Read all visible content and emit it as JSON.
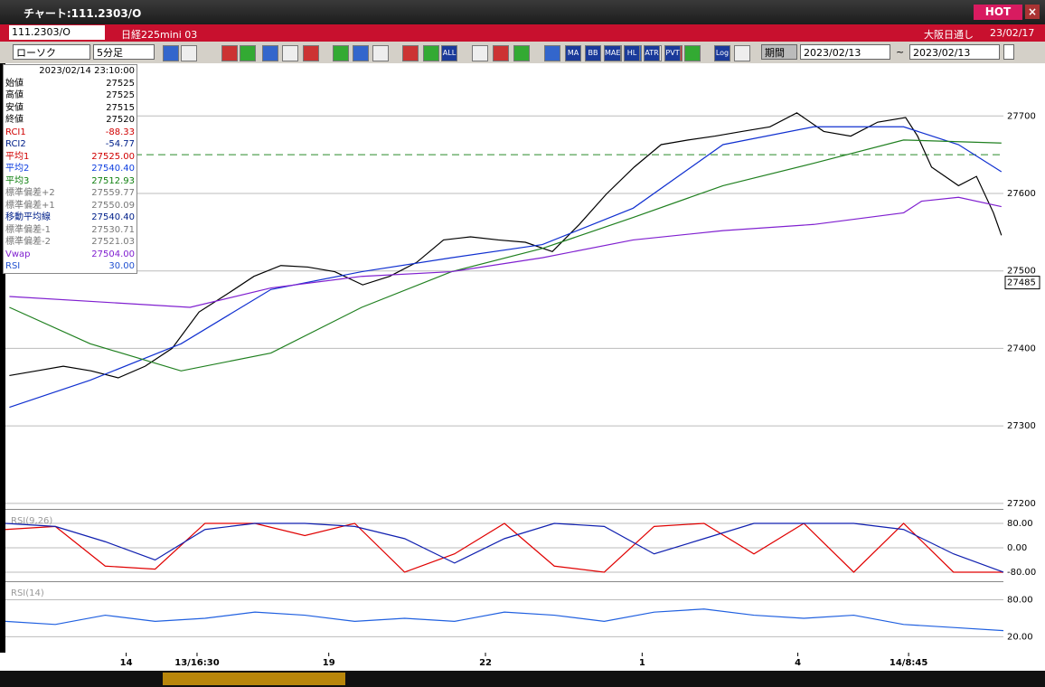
{
  "window": {
    "title": "チャート:111.2303/O",
    "hot": "HOT"
  },
  "symbol_bar": {
    "code": "111.2303/O",
    "name": "日経225mini 03",
    "session": "大阪日通し",
    "date": "23/02/17"
  },
  "toolbar": {
    "chart_style": "ローソク",
    "interval": "5分足",
    "buttons": [
      "ALL",
      "MA",
      "BB",
      "MAE",
      "HL",
      "ATR",
      "PVT",
      "Log"
    ],
    "period": "期間",
    "from": "2023/02/13",
    "tilde": "~",
    "to": "2023/02/13"
  },
  "info_panel": {
    "datetime": "2023/02/14 23:10:00",
    "rows": [
      {
        "label": "始値",
        "value": "27525",
        "color": "#000"
      },
      {
        "label": "高値",
        "value": "27525",
        "color": "#000"
      },
      {
        "label": "安値",
        "value": "27515",
        "color": "#000"
      },
      {
        "label": "終値",
        "value": "27520",
        "color": "#000"
      },
      {
        "label": "RCI1",
        "value": "-88.33",
        "color": "#d00000"
      },
      {
        "label": "RCI2",
        "value": "-54.77",
        "color": "#00208a"
      },
      {
        "label": "平均1",
        "value": "27525.00",
        "color": "#d00000"
      },
      {
        "label": "平均2",
        "value": "27540.40",
        "color": "#1040e0"
      },
      {
        "label": "平均3",
        "value": "27512.93",
        "color": "#108010"
      },
      {
        "label": "標準偏差+2",
        "value": "27559.77",
        "color": "#777"
      },
      {
        "label": "標準偏差+1",
        "value": "27550.09",
        "color": "#777"
      },
      {
        "label": "移動平均線",
        "value": "27540.40",
        "color": "#00208a"
      },
      {
        "label": "標準偏差-1",
        "value": "27530.71",
        "color": "#777"
      },
      {
        "label": "標準偏差-2",
        "value": "27521.03",
        "color": "#777"
      },
      {
        "label": "Vwap",
        "value": "27504.00",
        "color": "#8020d0"
      },
      {
        "label": "RSI",
        "value": "30.00",
        "color": "#2050d0"
      }
    ]
  },
  "chart_data": [
    {
      "type": "line",
      "xlim": [
        0,
        100
      ],
      "ylim": [
        27194,
        27768
      ],
      "yticks": [
        27200,
        27300,
        27400,
        27500,
        27600,
        27700
      ],
      "grid": true,
      "hline": 27650,
      "price_tag": 27485,
      "xticks": [
        {
          "value": 12.1,
          "label": "14"
        },
        {
          "value": 19.2,
          "label": "13/16:30"
        },
        {
          "value": 32.4,
          "label": "19"
        },
        {
          "value": 48.1,
          "label": "22"
        },
        {
          "value": 63.8,
          "label": "1"
        },
        {
          "value": 79.4,
          "label": "4"
        },
        {
          "value": 90.5,
          "label": "14/8:45"
        }
      ],
      "series": [
        {
          "name": "終値",
          "color": "#000000",
          "x": [
            0.4,
            3.1,
            5.8,
            8.6,
            11.3,
            14.0,
            16.7,
            19.4,
            22.2,
            24.9,
            27.6,
            30.3,
            33.0,
            35.8,
            38.5,
            41.2,
            43.9,
            46.6,
            49.4,
            52.1,
            54.8,
            57.5,
            60.2,
            63.0,
            65.7,
            68.4,
            71.1,
            73.8,
            76.6,
            79.3,
            82.0,
            84.7,
            87.4,
            90.2,
            91.4,
            92.8,
            95.5,
            97.3,
            99.0,
            99.8
          ],
          "values": [
            27365,
            27371,
            27377,
            27371,
            27362,
            27377,
            27400,
            27447,
            27470,
            27493,
            27507,
            27505,
            27499,
            27482,
            27493,
            27511,
            27540,
            27544,
            27540,
            27537,
            27525,
            27560,
            27599,
            27634,
            27663,
            27669,
            27674,
            27680,
            27686,
            27704,
            27680,
            27674,
            27692,
            27698,
            27674,
            27634,
            27610,
            27622,
            27575,
            27546
          ]
        },
        {
          "name": "平均2",
          "color": "#1030d0",
          "x": [
            0.4,
            8.5,
            17.6,
            26.6,
            35.7,
            44.7,
            53.8,
            62.9,
            71.9,
            81.0,
            90.0,
            95.5,
            99.8
          ],
          "values": [
            27324,
            27359,
            27406,
            27476,
            27499,
            27517,
            27534,
            27581,
            27663,
            27686,
            27686,
            27663,
            27628
          ]
        },
        {
          "name": "平均3",
          "color": "#208020",
          "x": [
            0.4,
            8.5,
            17.6,
            26.6,
            35.7,
            44.7,
            53.8,
            62.9,
            71.9,
            81.0,
            90.0,
            99.8
          ],
          "values": [
            27453,
            27406,
            27371,
            27394,
            27453,
            27499,
            27529,
            27569,
            27610,
            27639,
            27669,
            27665
          ]
        },
        {
          "name": "Vwap",
          "color": "#8020d0",
          "x": [
            0.4,
            18.5,
            26.6,
            35.7,
            44.7,
            53.8,
            62.9,
            71.9,
            81.0,
            90.0,
            91.8,
            95.5,
            99.8
          ],
          "values": [
            27467,
            27453,
            27478,
            27493,
            27499,
            27517,
            27540,
            27552,
            27560,
            27575,
            27590,
            27595,
            27583
          ]
        }
      ]
    },
    {
      "type": "line",
      "title": "RSI(9,26)",
      "xlim": [
        0,
        100
      ],
      "ylim": [
        -106.7,
        118.5
      ],
      "yticks": [
        {
          "value": 80,
          "label": "80.00"
        },
        {
          "value": 0,
          "label": "0.00"
        },
        {
          "value": -80,
          "label": "-80.00"
        }
      ],
      "grid": true,
      "x": [
        0,
        5,
        10,
        15,
        20,
        25,
        30,
        35,
        40,
        45,
        50,
        55,
        60,
        65,
        70,
        75,
        80,
        85,
        90,
        95,
        100
      ],
      "series": [
        {
          "name": "RCI1",
          "color": "#e00000",
          "values": [
            60,
            70,
            -60,
            -70,
            80,
            80,
            40,
            80,
            -80,
            -20,
            80,
            -60,
            -80,
            70,
            80,
            -20,
            80,
            -80,
            80,
            -80,
            -80
          ]
        },
        {
          "name": "RCI2",
          "color": "#1020b0",
          "values": [
            80,
            70,
            20,
            -40,
            60,
            80,
            80,
            70,
            30,
            -50,
            30,
            80,
            70,
            -20,
            30,
            80,
            80,
            80,
            60,
            -20,
            -80
          ]
        }
      ]
    },
    {
      "type": "line",
      "title": "RSI(14)",
      "xlim": [
        0,
        100
      ],
      "ylim": [
        -4.3,
        105.7
      ],
      "yticks": [
        {
          "value": 80,
          "label": "80.00"
        },
        {
          "value": 20,
          "label": "20.00"
        }
      ],
      "grid": true,
      "x": [
        0,
        5,
        10,
        15,
        20,
        25,
        30,
        35,
        40,
        45,
        50,
        55,
        60,
        65,
        70,
        75,
        80,
        85,
        90,
        95,
        100
      ],
      "series": [
        {
          "name": "RSI",
          "color": "#2060e0",
          "values": [
            45,
            40,
            55,
            45,
            50,
            60,
            55,
            45,
            50,
            45,
            60,
            55,
            45,
            60,
            65,
            55,
            50,
            55,
            40,
            35,
            30
          ]
        }
      ]
    }
  ]
}
